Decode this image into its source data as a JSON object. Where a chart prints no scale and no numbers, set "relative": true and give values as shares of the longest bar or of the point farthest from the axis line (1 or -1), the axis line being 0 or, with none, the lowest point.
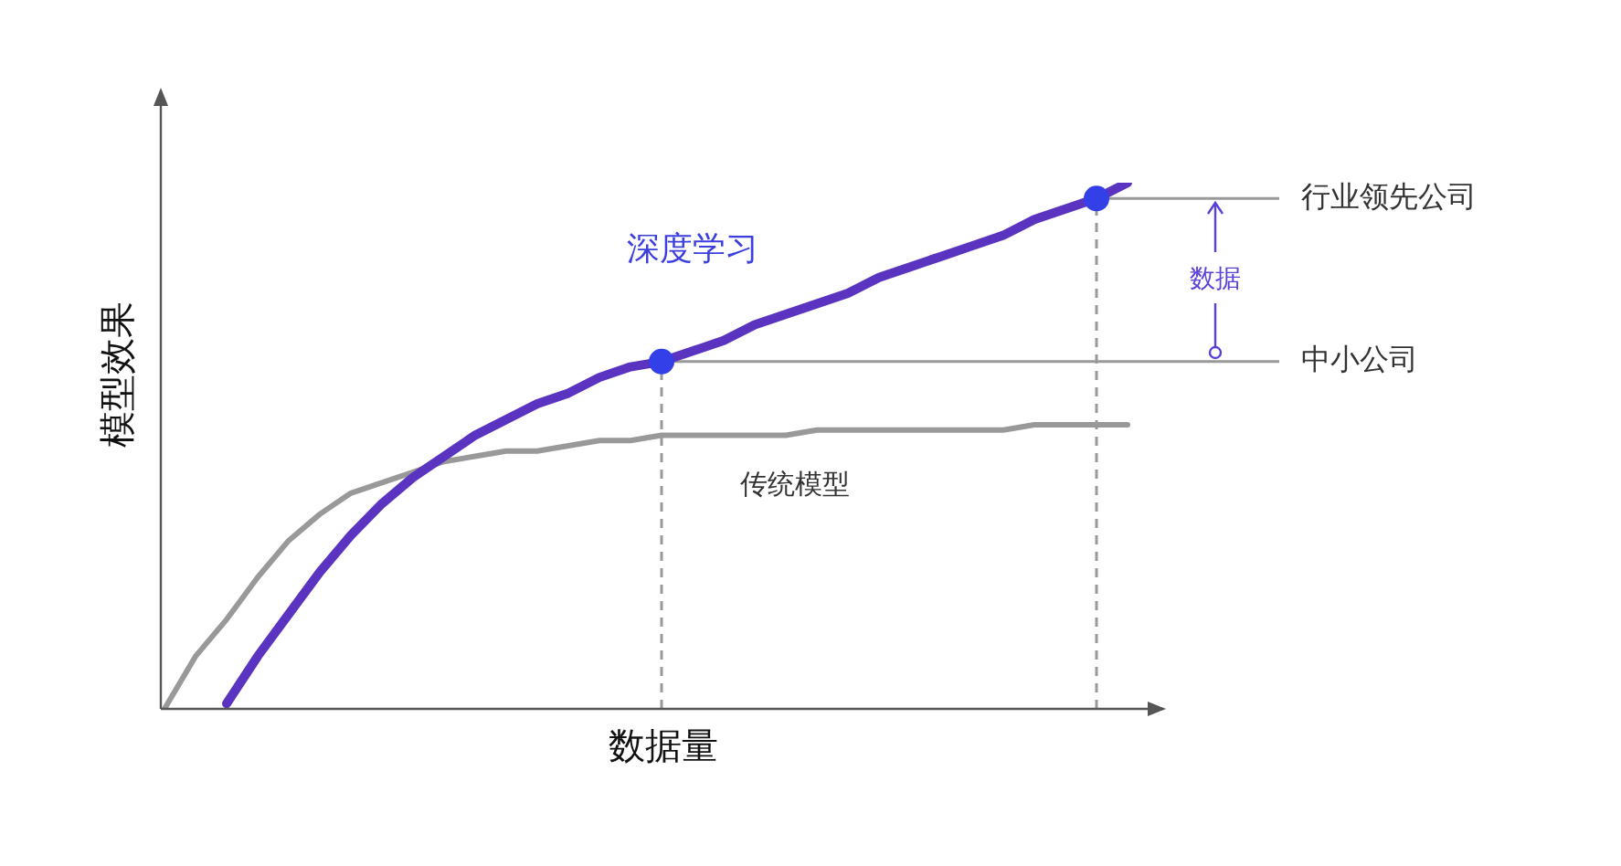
{
  "chart_data": {
    "type": "line",
    "relative": true,
    "xlabel": "数据量",
    "ylabel": "模型效果",
    "legend": false,
    "marker": "none",
    "categories": [
      null,
      null,
      null,
      null,
      null,
      null,
      null,
      null,
      null,
      null,
      null,
      null,
      null,
      null,
      null,
      null,
      null,
      null,
      null,
      null,
      null,
      null,
      null,
      null,
      null,
      null,
      null,
      null,
      null,
      null,
      null,
      null
    ],
    "series": [
      {
        "name": "深度学习",
        "color": "#5a33c0",
        "values": [
          null,
          null,
          0.01,
          0.1,
          0.18,
          0.26,
          0.33,
          0.39,
          0.44,
          0.48,
          0.52,
          0.55,
          0.58,
          0.6,
          0.63,
          0.65,
          0.66,
          0.68,
          0.7,
          0.73,
          0.75,
          0.77,
          0.79,
          0.82,
          0.84,
          0.86,
          0.88,
          0.9,
          0.93,
          0.95,
          0.97,
          1
        ]
      },
      {
        "name": "传统模型",
        "color": "#999999",
        "values": [
          0,
          0.1,
          0.17,
          0.25,
          0.32,
          0.37,
          0.41,
          0.43,
          0.45,
          0.47,
          0.48,
          0.49,
          0.49,
          0.5,
          0.51,
          0.51,
          0.52,
          0.52,
          0.52,
          0.52,
          0.52,
          0.53,
          0.53,
          0.53,
          0.53,
          0.53,
          0.53,
          0.53,
          0.54,
          0.54,
          0.54,
          0.54
        ]
      }
    ],
    "ref_lines": [
      {
        "axis": "y",
        "value": 0.66,
        "label": "中小公司",
        "color": "#999999",
        "line_style": "solid"
      },
      {
        "axis": "y",
        "value": 0.97,
        "label": "行业领先公司",
        "color": "#999999",
        "line_style": "solid"
      }
    ],
    "annotations": [
      "数据"
    ]
  }
}
